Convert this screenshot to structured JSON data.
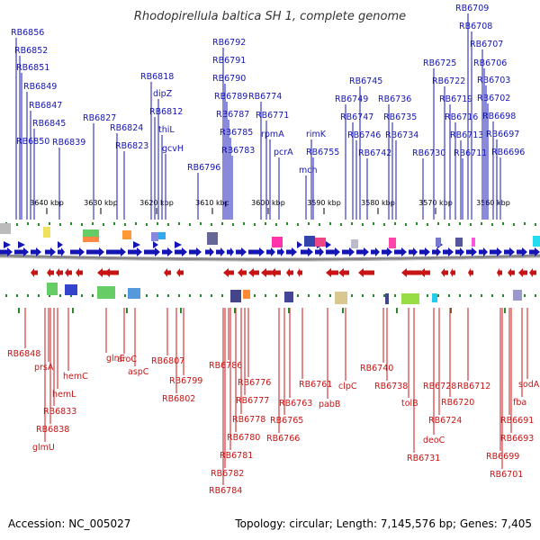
{
  "title": "Rhodopirellula baltica SH 1, complete genome",
  "footer": {
    "accession": "Accession: NC_005027",
    "info": "Topology: circular; Length: 7,145,576 bp; Genes: 7,405"
  },
  "colors": {
    "forward": "#1515b4",
    "reverse": "#c81414",
    "backbone": "#888888",
    "tick": "#2a8a2a"
  },
  "scale": {
    "ticks": [
      {
        "label": "3640 kbp"
      },
      {
        "label": "3630 kbp"
      },
      {
        "label": "3620 kbp"
      },
      {
        "label": "3610 kbp"
      },
      {
        "label": "3600 kbp"
      },
      {
        "label": "3590 kbp"
      },
      {
        "label": "3580 kbp"
      },
      {
        "label": "3570 kbp"
      },
      {
        "label": "3560 kbp"
      }
    ]
  },
  "forward_genes": [
    {
      "label": "RB6856"
    },
    {
      "label": "RB6852"
    },
    {
      "label": "RB6851"
    },
    {
      "label": "RB6849"
    },
    {
      "label": "RB6847"
    },
    {
      "label": "RB6845"
    },
    {
      "label": "RB6850"
    },
    {
      "label": "RB6839"
    },
    {
      "label": "RB6827"
    },
    {
      "label": "RB6824"
    },
    {
      "label": "RB6823"
    },
    {
      "label": "RB6818"
    },
    {
      "label": "dipZ"
    },
    {
      "label": "RB6812"
    },
    {
      "label": "thiL"
    },
    {
      "label": "gcvH"
    },
    {
      "label": "RB6796"
    },
    {
      "label": "RB6792"
    },
    {
      "label": "RB6791"
    },
    {
      "label": "RB6790"
    },
    {
      "label": "RB6789"
    },
    {
      "label": "RB6787"
    },
    {
      "label": "RB6785"
    },
    {
      "label": "RB6783"
    },
    {
      "label": "RB6774"
    },
    {
      "label": "RB6771"
    },
    {
      "label": "rpmA"
    },
    {
      "label": "pcrA"
    },
    {
      "label": "rimK"
    },
    {
      "label": "mch"
    },
    {
      "label": "RB6755"
    },
    {
      "label": "RB6749"
    },
    {
      "label": "RB6745"
    },
    {
      "label": "RB6747"
    },
    {
      "label": "RB6746"
    },
    {
      "label": "RB6742"
    },
    {
      "label": "RB6736"
    },
    {
      "label": "RB6735"
    },
    {
      "label": "RB6734"
    },
    {
      "label": "RB6730"
    },
    {
      "label": "RB6725"
    },
    {
      "label": "RB6722"
    },
    {
      "label": "RB6719"
    },
    {
      "label": "RB6716"
    },
    {
      "label": "RB6713"
    },
    {
      "label": "RB6711"
    },
    {
      "label": "RB6709"
    },
    {
      "label": "RB6708"
    },
    {
      "label": "RB6707"
    },
    {
      "label": "RB6706"
    },
    {
      "label": "RB6703"
    },
    {
      "label": "RB6702"
    },
    {
      "label": "RB6698"
    },
    {
      "label": "RB6697"
    },
    {
      "label": "RB6696"
    }
  ],
  "reverse_genes": [
    {
      "label": "RB6848"
    },
    {
      "label": "prsA"
    },
    {
      "label": "hemC"
    },
    {
      "label": "hemL"
    },
    {
      "label": "RB6833"
    },
    {
      "label": "RB6838"
    },
    {
      "label": "glmU"
    },
    {
      "label": "glnE"
    },
    {
      "label": "aroC"
    },
    {
      "label": "aspC"
    },
    {
      "label": "RB6807"
    },
    {
      "label": "RB6799"
    },
    {
      "label": "RB6802"
    },
    {
      "label": "RB6786"
    },
    {
      "label": "RB6776"
    },
    {
      "label": "RB6777"
    },
    {
      "label": "RB6778"
    },
    {
      "label": "RB6780"
    },
    {
      "label": "RB6781"
    },
    {
      "label": "RB6782"
    },
    {
      "label": "RB6784"
    },
    {
      "label": "RB6761"
    },
    {
      "label": "RB6763"
    },
    {
      "label": "RB6765"
    },
    {
      "label": "RB6766"
    },
    {
      "label": "pabB"
    },
    {
      "label": "clpC"
    },
    {
      "label": "RB6740"
    },
    {
      "label": "RB6738"
    },
    {
      "label": "tolB"
    },
    {
      "label": "RB6731"
    },
    {
      "label": "RB6728"
    },
    {
      "label": "RB6720"
    },
    {
      "label": "RB6724"
    },
    {
      "label": "deoC"
    },
    {
      "label": "RB6712"
    },
    {
      "label": "sodA"
    },
    {
      "label": "fba"
    },
    {
      "label": "RB6691"
    },
    {
      "label": "RB6693"
    },
    {
      "label": "RB6699"
    },
    {
      "label": "RB6701"
    }
  ]
}
